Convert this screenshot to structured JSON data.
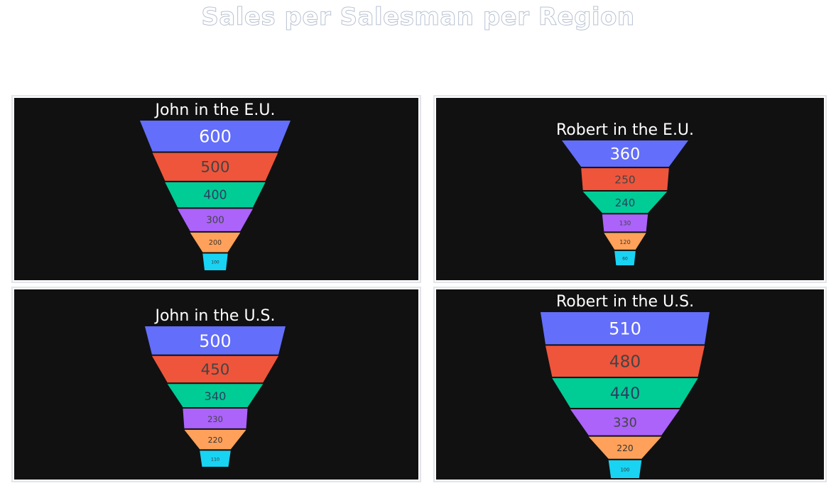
{
  "title": "Sales per Salesman per Region",
  "colors": [
    "#636efa",
    "#ef553b",
    "#00cc96",
    "#ab63fa",
    "#ffa15a",
    "#19d3f3"
  ],
  "chart_data": [
    {
      "type": "funnel",
      "title": "John in the E.U.",
      "values": [
        600,
        500,
        400,
        300,
        200,
        100
      ]
    },
    {
      "type": "funnel",
      "title": "Robert in the E.U.",
      "values": [
        360,
        250,
        240,
        130,
        120,
        60
      ]
    },
    {
      "type": "funnel",
      "title": "John in the U.S.",
      "values": [
        500,
        450,
        340,
        230,
        220,
        110
      ]
    },
    {
      "type": "funnel",
      "title": "Robert in the U.S.",
      "values": [
        510,
        480,
        440,
        330,
        220,
        100
      ]
    }
  ]
}
